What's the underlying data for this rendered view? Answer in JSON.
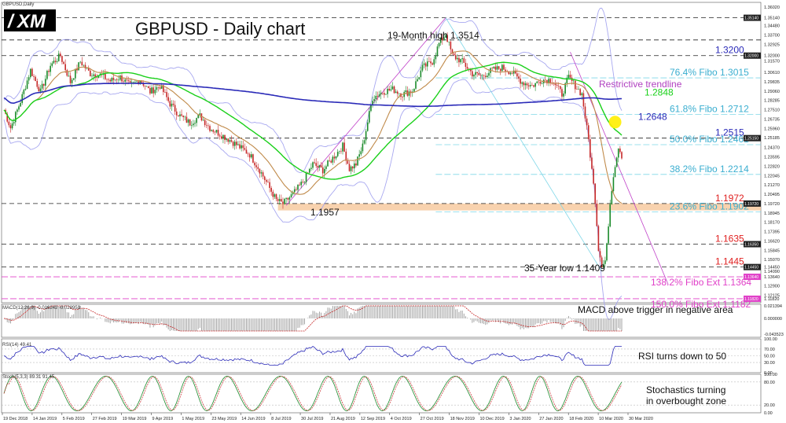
{
  "window": {
    "symbol_label": "GBPUSD,Daily"
  },
  "logo": {
    "text": "XM",
    "mark": "/"
  },
  "chart_data": {
    "type": "line",
    "title": "GBPUSD - Daily chart",
    "colors": {
      "candle_up": "#1a8a2a",
      "candle_down": "#c62828",
      "sma20": "#c08a4a",
      "sma50": "#1ad01a",
      "sma200": "#2a2ab8",
      "bollinger": "#a8a8f0",
      "fibo": "#7fd7e8",
      "fibo_ext": "#e040c8",
      "level_red": "#e02020",
      "level_blue": "#2a2ab8",
      "support_zone": "#f6c79a",
      "trendline": "#c040c8",
      "highlight": "#ffee00"
    },
    "main_pane": {
      "ylim": [
        1.1149,
        1.3642
      ],
      "y_ticks": [
        "1.36020",
        "1.35140",
        "1.34480",
        "1.33700",
        "1.32925",
        "1.32000",
        "1.31570",
        "1.30610",
        "1.29835",
        "1.29060",
        "1.28285",
        "1.27510",
        "1.26735",
        "1.25960",
        "1.25185",
        "1.24370",
        "1.23595",
        "1.22820",
        "1.22045",
        "1.21270",
        "1.20495",
        "1.19720",
        "1.18945",
        "1.18170",
        "1.17395",
        "1.16620",
        "1.15845",
        "1.15070",
        "1.14450",
        "1.14090",
        "1.13640",
        "1.12900",
        "1.12125",
        "1.11820"
      ],
      "x_labels": [
        "19 Dec 2018",
        "14 Jan 2019",
        "5 Feb 2019",
        "27 Feb 2019",
        "19 Mar 2019",
        "9 Apr 2019",
        "1 May 2019",
        "23 May 2019",
        "14 Jun 2019",
        "8 Jul 2019",
        "30 Jul 2019",
        "21 Aug 2019",
        "12 Sep 2019",
        "4 Oct 2019",
        "27 Oct 2019",
        "18 Nov 2019",
        "10 Dec 2019",
        "3 Jan 2020",
        "27 Jan 2020",
        "18 Feb 2020",
        "10 Mar 2020",
        "30 Mar 2020"
      ],
      "price_path": [
        [
          0,
          1.275
        ],
        [
          4,
          1.26
        ],
        [
          10,
          1.282
        ],
        [
          16,
          1.308
        ],
        [
          22,
          1.29
        ],
        [
          28,
          1.312
        ],
        [
          34,
          1.32
        ],
        [
          40,
          1.298
        ],
        [
          46,
          1.315
        ],
        [
          52,
          1.305
        ],
        [
          58,
          1.304
        ],
        [
          64,
          1.299
        ],
        [
          70,
          1.302
        ],
        [
          76,
          1.295
        ],
        [
          82,
          1.3
        ],
        [
          88,
          1.29
        ],
        [
          94,
          1.295
        ],
        [
          100,
          1.28
        ],
        [
          106,
          1.27
        ],
        [
          112,
          1.264
        ],
        [
          118,
          1.27
        ],
        [
          124,
          1.26
        ],
        [
          130,
          1.255
        ],
        [
          136,
          1.25
        ],
        [
          142,
          1.244
        ],
        [
          148,
          1.238
        ],
        [
          154,
          1.225
        ],
        [
          160,
          1.21
        ],
        [
          164,
          1.2
        ],
        [
          168,
          1.197
        ],
        [
          174,
          1.205
        ],
        [
          180,
          1.215
        ],
        [
          186,
          1.23
        ],
        [
          192,
          1.225
        ],
        [
          198,
          1.235
        ],
        [
          204,
          1.245
        ],
        [
          208,
          1.226
        ],
        [
          212,
          1.23
        ],
        [
          216,
          1.245
        ],
        [
          222,
          1.285
        ],
        [
          228,
          1.29
        ],
        [
          234,
          1.292
        ],
        [
          240,
          1.288
        ],
        [
          246,
          1.291
        ],
        [
          252,
          1.31
        ],
        [
          258,
          1.315
        ],
        [
          262,
          1.33
        ],
        [
          266,
          1.338
        ],
        [
          270,
          1.32
        ],
        [
          276,
          1.315
        ],
        [
          282,
          1.305
        ],
        [
          288,
          1.303
        ],
        [
          294,
          1.308
        ],
        [
          300,
          1.31
        ],
        [
          306,
          1.306
        ],
        [
          312,
          1.298
        ],
        [
          318,
          1.295
        ],
        [
          324,
          1.3
        ],
        [
          330,
          1.3
        ],
        [
          336,
          1.288
        ],
        [
          340,
          1.302
        ],
        [
          344,
          1.295
        ],
        [
          348,
          1.288
        ],
        [
          352,
          1.25
        ],
        [
          356,
          1.2
        ],
        [
          358,
          1.16
        ],
        [
          360,
          1.147
        ],
        [
          362,
          1.15
        ],
        [
          364,
          1.178
        ],
        [
          366,
          1.21
        ],
        [
          368,
          1.23
        ],
        [
          370,
          1.245
        ],
        [
          372,
          1.237
        ]
      ],
      "levels": [
        {
          "label": "1.3200",
          "value": 1.32,
          "color": "level_blue"
        },
        {
          "label": "1.2848",
          "value": 1.2848,
          "color": "sma50"
        },
        {
          "label": "1.2648",
          "value": 1.2648,
          "color": "level_blue"
        },
        {
          "label": "1.2515",
          "value": 1.2515,
          "color": "level_blue"
        },
        {
          "label": "1.1972",
          "value": 1.1972,
          "color": "level_red"
        },
        {
          "label": "1.1635",
          "value": 1.1635,
          "color": "level_red"
        },
        {
          "label": "1.1445",
          "value": 1.1445,
          "color": "level_red"
        }
      ],
      "fibo_labels": [
        {
          "label": "76.4% Fibo 1.3015",
          "value": 1.3015
        },
        {
          "label": "61.8% Fibo 1.2712",
          "value": 1.2712
        },
        {
          "label": "50.0% Fibo 1.2461",
          "value": 1.2461
        },
        {
          "label": "38.2% Fibo 1.2214",
          "value": 1.2214
        },
        {
          "label": "23.6% Fibo 1.1902",
          "value": 1.1902
        }
      ],
      "fibo_ext_labels": [
        {
          "label": "138.2% Fibo Ext 1.1364",
          "value": 1.1364
        },
        {
          "label": "150.0% Fibo Ext 1.1182",
          "value": 1.1182
        }
      ],
      "annotations": {
        "high": "19-Month high 1.3514",
        "low": "35-Year low 1.1409",
        "support": "1.1957",
        "trendline": "Restrictive trendline"
      },
      "tags": [
        "1.35140",
        "1.32000",
        "1.25150",
        "1.19720",
        "1.16350",
        "1.14450",
        "1.13640",
        "1.11820"
      ]
    },
    "macd_pane": {
      "title": "MACD(12,26,9) -0.016243 -0.028953",
      "y_ticks": [
        "0.021394",
        "0.000000",
        "-0.043523"
      ],
      "annotation": "MACD above trigger in negative area"
    },
    "rsi_pane": {
      "title": "RSI(14) 49.41",
      "y_ticks": [
        "100.00",
        "70.00",
        "50.00",
        "30.00",
        "0.00"
      ],
      "annotation": "RSI turns down to 50"
    },
    "stoch_pane": {
      "title": "Stoch(5,3,3) 89.31 91.45",
      "y_ticks": [
        "100.00",
        "80.00",
        "20.00",
        "0.00"
      ],
      "annotation_line1": "Stochastics turning",
      "annotation_line2": "in overbought zone"
    }
  }
}
